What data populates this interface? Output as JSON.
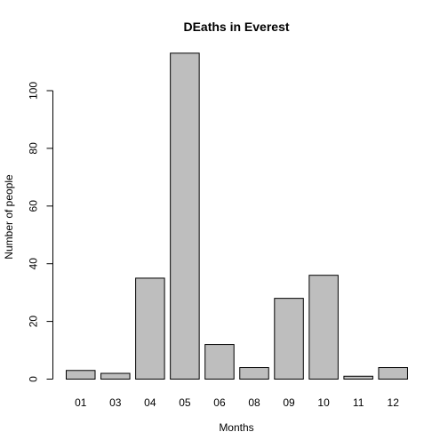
{
  "chart_data": {
    "type": "bar",
    "title": "DEaths in Everest",
    "xlabel": "Months",
    "ylabel": "Number of people",
    "categories": [
      "01",
      "03",
      "04",
      "05",
      "06",
      "08",
      "09",
      "10",
      "11",
      "12"
    ],
    "values": [
      3,
      2,
      35,
      113,
      12,
      4,
      28,
      36,
      1,
      4
    ],
    "ylim": [
      0,
      113
    ],
    "yticks": [
      0,
      20,
      40,
      60,
      80,
      100
    ],
    "grid": false,
    "legend": "none",
    "bar_color": "#bebebe",
    "bar_stroke": "#000000"
  }
}
